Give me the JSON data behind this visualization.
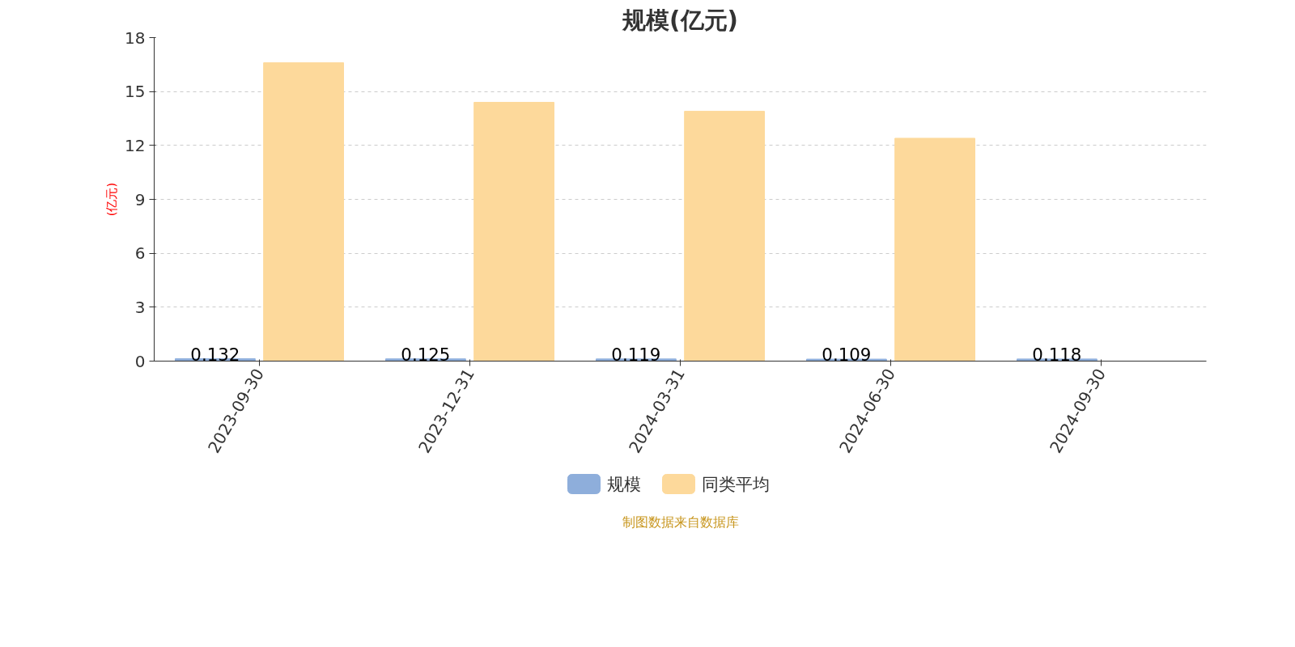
{
  "chart_data": {
    "type": "bar",
    "title": "规模(亿元)",
    "ylabel": "(亿元)",
    "categories": [
      "2023-09-30",
      "2023-12-31",
      "2024-03-31",
      "2024-06-30",
      "2024-09-30"
    ],
    "series": [
      {
        "name": "规模",
        "color": "#8eaedb",
        "values": [
          0.132,
          0.125,
          0.119,
          0.109,
          0.118
        ],
        "value_labels": [
          "0.132",
          "0.125",
          "0.119",
          "0.109",
          "0.118"
        ]
      },
      {
        "name": "同类平均",
        "color": "#fdd99b",
        "values": [
          16.6,
          14.4,
          13.9,
          12.4,
          null
        ]
      }
    ],
    "ylim": [
      0,
      18
    ],
    "yticks": [
      0,
      3,
      6,
      9,
      12,
      15,
      18
    ],
    "grid": "y",
    "legend": "bottom",
    "annotations": [
      "制图数据来自数据库"
    ]
  }
}
